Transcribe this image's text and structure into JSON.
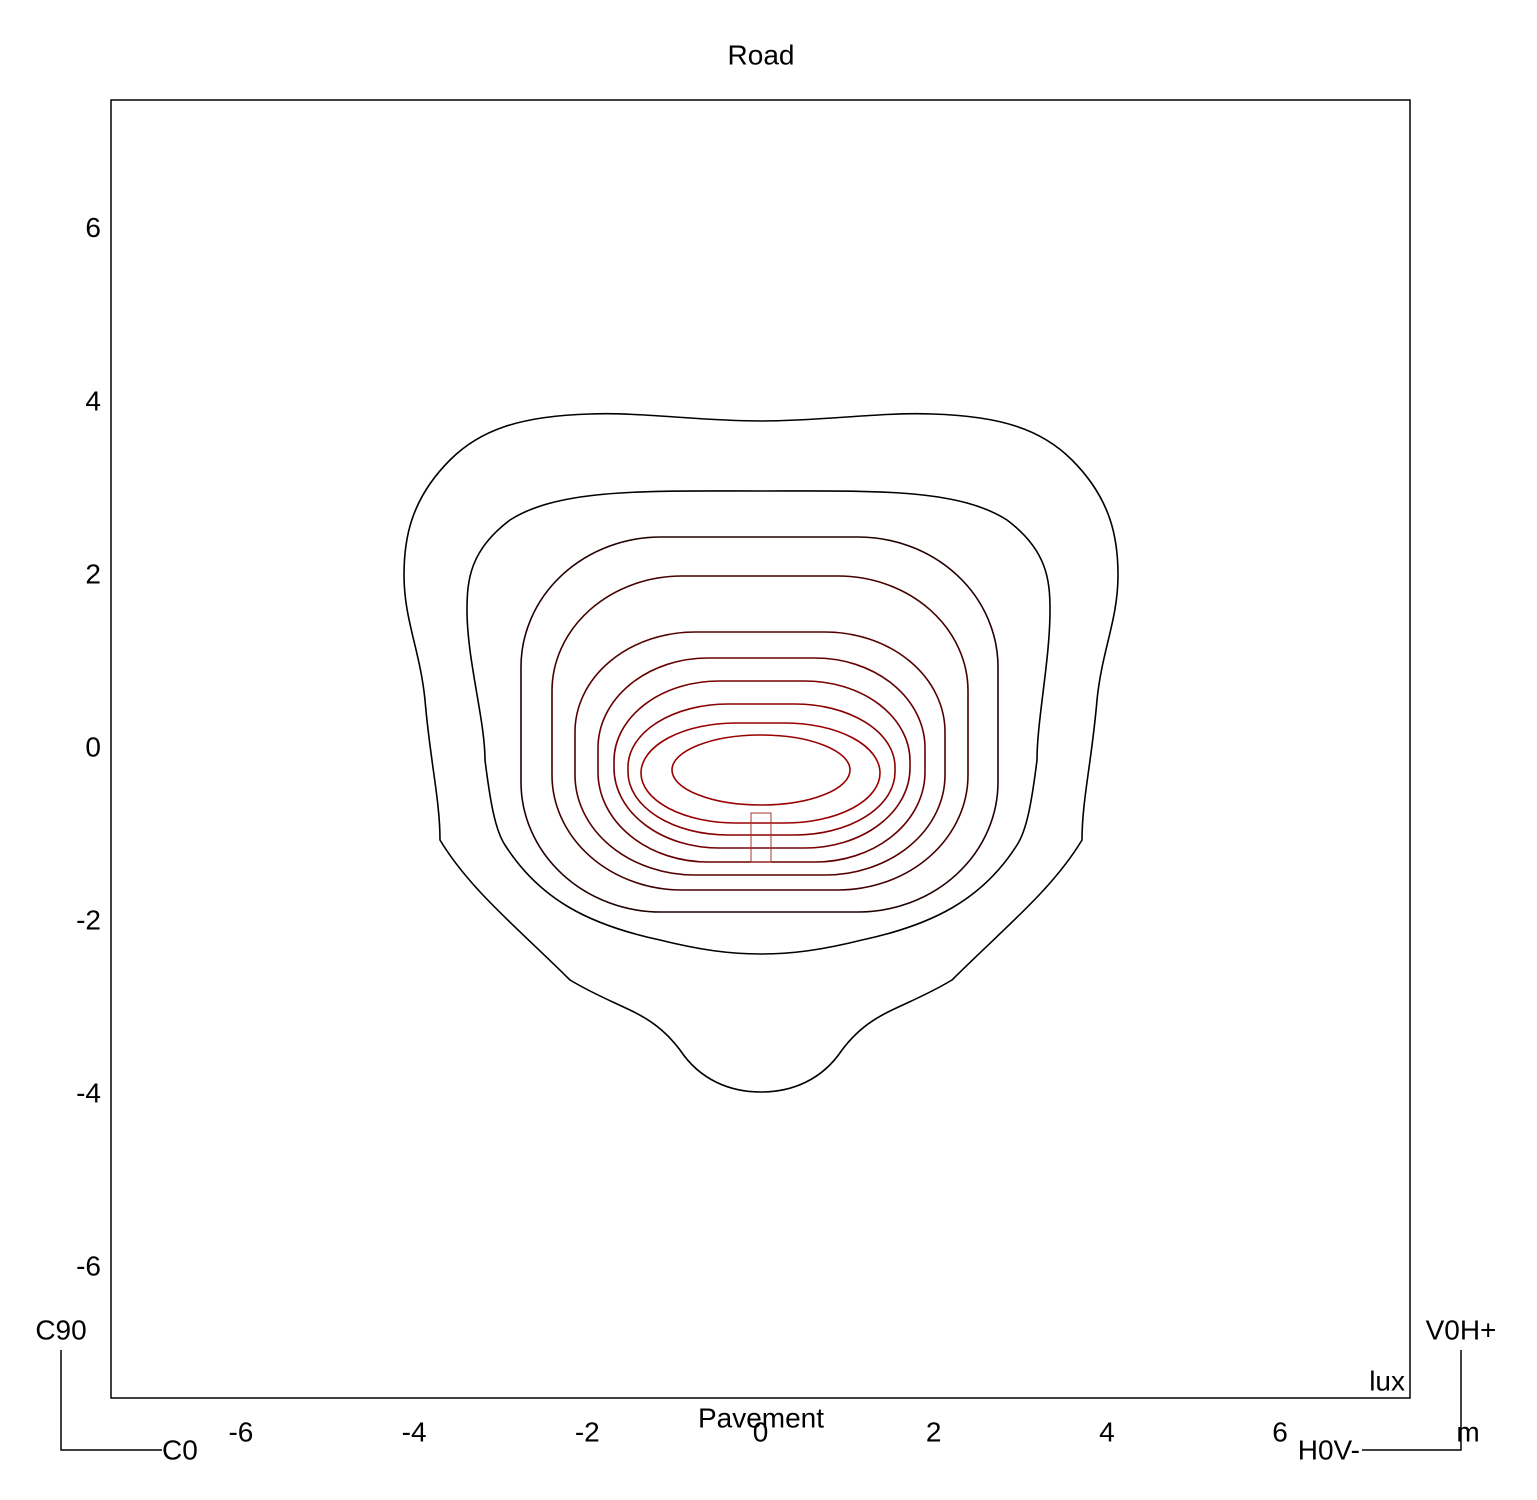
{
  "chart_data": {
    "type": "contour",
    "title": "Road",
    "x_label": "Pavement",
    "unit_label": "lux",
    "xlim": [
      -7.5,
      7.5
    ],
    "ylim": [
      -7.5,
      7.5
    ],
    "xticks": [
      -6,
      -4,
      -2,
      0,
      2,
      4,
      6
    ],
    "yticks": [
      -6,
      -4,
      -2,
      0,
      2,
      4,
      6
    ]
  },
  "orientation": {
    "c90": "C90",
    "c0": "C0",
    "v0h": "V0H+",
    "h0v": "H0V-",
    "unit": "m"
  }
}
